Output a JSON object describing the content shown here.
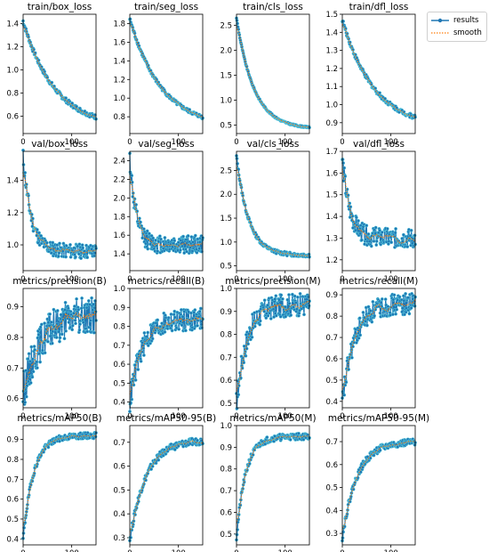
{
  "colors": {
    "results": "#1f77b4",
    "smooth": "#ff7f0e",
    "marker_edge": "#5dd0e0"
  },
  "legend": {
    "results": "results",
    "smooth": "smooth",
    "placement": "top-right"
  },
  "chart_data": [
    {
      "type": "line",
      "title": "train/box_loss",
      "xlim": [
        0,
        150
      ],
      "ylim": [
        0.45,
        1.48
      ],
      "yticks": [
        0.6,
        0.8,
        1.0,
        1.2,
        1.4
      ],
      "xticks": [
        0,
        100
      ],
      "start": 1.42,
      "end": 0.5,
      "shape": "exp",
      "decay": 2.3,
      "noise": 0.02,
      "grid": false
    },
    {
      "type": "line",
      "title": "train/seg_loss",
      "xlim": [
        0,
        150
      ],
      "ylim": [
        0.62,
        1.9
      ],
      "yticks": [
        0.8,
        1.0,
        1.2,
        1.4,
        1.6,
        1.8
      ],
      "xticks": [
        0,
        100
      ],
      "start": 1.85,
      "end": 0.68,
      "shape": "exp",
      "decay": 2.3,
      "noise": 0.02,
      "grid": false
    },
    {
      "type": "line",
      "title": "train/cls_loss",
      "xlim": [
        0,
        150
      ],
      "ylim": [
        0.33,
        2.72
      ],
      "yticks": [
        0.5,
        1.0,
        1.5,
        2.0,
        2.5
      ],
      "xticks": [
        0,
        100
      ],
      "start": 2.65,
      "end": 0.42,
      "shape": "exp",
      "decay": 4.2,
      "noise": 0.015,
      "grid": false
    },
    {
      "type": "line",
      "title": "train/dfl_loss",
      "xlim": [
        0,
        150
      ],
      "ylim": [
        0.84,
        1.5
      ],
      "yticks": [
        0.9,
        1.0,
        1.1,
        1.2,
        1.3,
        1.4,
        1.5
      ],
      "xticks": [
        0,
        100
      ],
      "start": 1.47,
      "end": 0.87,
      "shape": "exp",
      "decay": 2.3,
      "noise": 0.012,
      "grid": false
    },
    {
      "type": "line",
      "title": "val/box_loss",
      "xlim": [
        0,
        150
      ],
      "ylim": [
        0.84,
        1.58
      ],
      "yticks": [
        1.0,
        1.2,
        1.4
      ],
      "xticks": [
        0,
        100
      ],
      "start": 1.55,
      "end": 0.96,
      "shape": "exp",
      "decay": 9,
      "noise": 0.045,
      "grid": false
    },
    {
      "type": "line",
      "title": "val/seg_loss",
      "xlim": [
        0,
        150
      ],
      "ylim": [
        1.22,
        2.5
      ],
      "yticks": [
        1.4,
        1.6,
        1.8,
        2.0,
        2.2,
        2.4
      ],
      "xticks": [
        0,
        100
      ],
      "start": 2.43,
      "end": 1.5,
      "shape": "exp",
      "decay": 12,
      "noise": 0.1,
      "grid": false
    },
    {
      "type": "line",
      "title": "val/cls_loss",
      "xlim": [
        0,
        150
      ],
      "ylim": [
        0.4,
        2.9
      ],
      "yticks": [
        0.5,
        1.0,
        1.5,
        2.0,
        2.5
      ],
      "xticks": [
        0,
        100
      ],
      "start": 2.8,
      "end": 0.72,
      "shape": "exp",
      "decay": 6,
      "noise": 0.04,
      "grid": false
    },
    {
      "type": "line",
      "title": "val/dfl_loss",
      "xlim": [
        0,
        150
      ],
      "ylim": [
        1.15,
        1.7
      ],
      "yticks": [
        1.2,
        1.3,
        1.4,
        1.5,
        1.6,
        1.7
      ],
      "xticks": [
        0,
        100
      ],
      "start": 1.67,
      "end": 1.3,
      "shape": "exp",
      "decay": 10,
      "noise": 0.045,
      "grid": false
    },
    {
      "type": "line",
      "title": "metrics/precision(B)",
      "xlim": [
        0,
        150
      ],
      "ylim": [
        0.57,
        0.96
      ],
      "yticks": [
        0.6,
        0.7,
        0.8,
        0.9
      ],
      "xticks": [
        0,
        100
      ],
      "start": 0.62,
      "end": 0.88,
      "shape": "rise",
      "decay": 4,
      "noise": 0.06,
      "grid": false
    },
    {
      "type": "line",
      "title": "metrics/recall(B)",
      "xlim": [
        0,
        150
      ],
      "ylim": [
        0.37,
        1.0
      ],
      "yticks": [
        0.4,
        0.5,
        0.6,
        0.7,
        0.8,
        0.9,
        1.0
      ],
      "xticks": [
        0,
        100
      ],
      "start": 0.4,
      "end": 0.84,
      "shape": "rise",
      "decay": 6,
      "noise": 0.06,
      "grid": false
    },
    {
      "type": "line",
      "title": "metrics/precision(M)",
      "xlim": [
        0,
        150
      ],
      "ylim": [
        0.48,
        1.0
      ],
      "yticks": [
        0.5,
        0.6,
        0.7,
        0.8,
        0.9,
        1.0
      ],
      "xticks": [
        0,
        100
      ],
      "start": 0.5,
      "end": 0.93,
      "shape": "rise",
      "decay": 7,
      "noise": 0.05,
      "grid": false
    },
    {
      "type": "line",
      "title": "metrics/recall(M)",
      "xlim": [
        0,
        150
      ],
      "ylim": [
        0.37,
        0.93
      ],
      "yticks": [
        0.4,
        0.5,
        0.6,
        0.7,
        0.8,
        0.9
      ],
      "xticks": [
        0,
        100
      ],
      "start": 0.39,
      "end": 0.86,
      "shape": "rise",
      "decay": 6,
      "noise": 0.05,
      "grid": false
    },
    {
      "type": "line",
      "title": "metrics/mAP50(B)",
      "xlim": [
        0,
        150
      ],
      "ylim": [
        0.37,
        0.97
      ],
      "yticks": [
        0.4,
        0.5,
        0.6,
        0.7,
        0.8,
        0.9
      ],
      "xticks": [
        0,
        100
      ],
      "start": 0.4,
      "end": 0.92,
      "shape": "rise",
      "decay": 7,
      "noise": 0.015,
      "grid": false
    },
    {
      "type": "line",
      "title": "metrics/mAP50-95(B)",
      "xlim": [
        0,
        150
      ],
      "ylim": [
        0.27,
        0.77
      ],
      "yticks": [
        0.3,
        0.4,
        0.5,
        0.6,
        0.7
      ],
      "xticks": [
        0,
        100
      ],
      "start": 0.29,
      "end": 0.71,
      "shape": "rise",
      "decay": 4.5,
      "noise": 0.015,
      "grid": false
    },
    {
      "type": "line",
      "title": "metrics/mAP50(M)",
      "xlim": [
        0,
        150
      ],
      "ylim": [
        0.45,
        1.0
      ],
      "yticks": [
        0.5,
        0.6,
        0.7,
        0.8,
        0.9,
        1.0
      ],
      "xticks": [
        0,
        100
      ],
      "start": 0.48,
      "end": 0.95,
      "shape": "rise",
      "decay": 8,
      "noise": 0.015,
      "grid": false
    },
    {
      "type": "line",
      "title": "metrics/mAP50-95(M)",
      "xlim": [
        0,
        150
      ],
      "ylim": [
        0.25,
        0.77
      ],
      "yticks": [
        0.3,
        0.4,
        0.5,
        0.6,
        0.7
      ],
      "xticks": [
        0,
        100
      ],
      "start": 0.28,
      "end": 0.7,
      "shape": "rise",
      "decay": 5,
      "noise": 0.015,
      "grid": false
    }
  ]
}
